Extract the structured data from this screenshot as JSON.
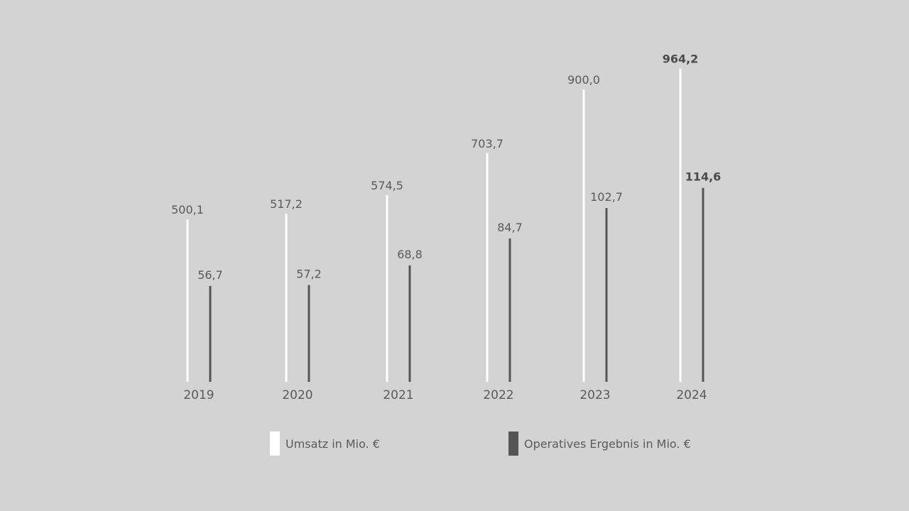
{
  "chart_data": {
    "type": "bar",
    "categories": [
      "2019",
      "2020",
      "2021",
      "2022",
      "2023",
      "2024"
    ],
    "series": [
      {
        "name": "Umsatz in Mio. €",
        "color": "#ffffff",
        "values": [
          500.1,
          517.2,
          574.5,
          703.7,
          900.0,
          964.2
        ],
        "labels": [
          "500,1",
          "517,2",
          "574,5",
          "703,7",
          "900,0",
          "964,2"
        ]
      },
      {
        "name": "Operatives Ergebnis in Mio. €",
        "color": "#555555",
        "values": [
          56.7,
          57.2,
          68.8,
          84.7,
          102.7,
          114.6
        ],
        "labels": [
          "56,7",
          "57,2",
          "68,8",
          "84,7",
          "102,7",
          "114,6"
        ]
      }
    ],
    "highlight_category": "2024",
    "legend_position": "bottom-center",
    "grid": false
  },
  "legend": {
    "umsatz_label": "Umsatz in Mio. €",
    "ergebnis_label": "Operatives Ergebnis in Mio. €"
  }
}
